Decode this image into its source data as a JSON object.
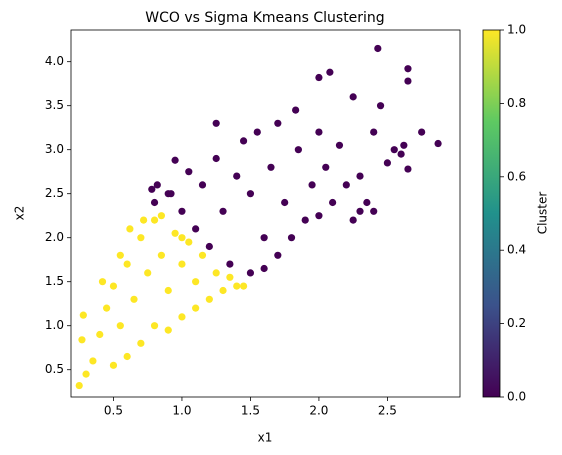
{
  "chart_data": {
    "type": "scatter",
    "title": "WCO vs Sigma Kmeans Clustering",
    "x_label": "x1",
    "y_label": "x2",
    "xlim": [
      0.19,
      3.03
    ],
    "ylim": [
      0.19,
      4.36
    ],
    "xticks": [
      0.5,
      {
        "value": 1,
        "label": "1.0"
      },
      1.5,
      {
        "value": 2,
        "label": "2.0"
      },
      2.5
    ],
    "yticks": [
      0.5,
      {
        "value": 1,
        "label": "1.0"
      },
      1.5,
      {
        "value": 2,
        "label": "2.0"
      },
      2.5,
      {
        "value": 3,
        "label": "3.0"
      },
      3.5,
      {
        "value": 4,
        "label": "4.0"
      }
    ],
    "series": [
      {
        "color": "#fde725",
        "x": [
          0.25,
          0.27,
          0.28,
          0.3,
          0.35,
          0.4,
          0.45,
          0.5,
          0.5,
          0.55,
          0.6,
          0.6,
          0.65,
          0.7,
          0.7,
          0.75,
          0.8,
          0.8,
          0.85,
          0.9,
          0.9,
          0.95,
          1.0,
          1.0,
          1.05,
          1.1,
          1.1,
          1.15,
          1.2,
          1.25,
          1.3,
          1.35,
          1.4,
          1.45,
          0.62,
          0.72,
          0.85,
          0.42,
          0.55,
          1.0
        ],
        "values": [
          0.32,
          0.84,
          1.12,
          0.45,
          0.6,
          0.9,
          1.2,
          0.55,
          1.45,
          1.0,
          1.7,
          0.65,
          1.3,
          2.0,
          0.8,
          1.6,
          2.2,
          1.0,
          1.8,
          0.95,
          1.4,
          2.05,
          1.1,
          1.7,
          1.95,
          1.2,
          1.5,
          1.8,
          1.3,
          1.6,
          1.4,
          1.55,
          1.45,
          1.45,
          2.1,
          2.2,
          2.25,
          1.5,
          1.8,
          2.0
        ]
      },
      {
        "color": "#440154",
        "x": [
          0.8,
          0.82,
          0.9,
          0.95,
          1.0,
          1.05,
          1.1,
          1.15,
          1.2,
          1.25,
          1.3,
          1.35,
          1.4,
          1.45,
          1.5,
          1.5,
          1.55,
          1.6,
          1.65,
          1.7,
          1.7,
          1.75,
          1.8,
          1.85,
          1.9,
          1.95,
          2.0,
          2.0,
          2.05,
          2.1,
          2.15,
          2.2,
          2.25,
          2.3,
          2.35,
          2.4,
          2.0,
          2.08,
          2.25,
          2.43,
          2.65,
          2.65,
          2.75,
          2.87,
          2.62,
          2.6,
          2.55,
          2.65,
          2.5,
          2.45,
          1.83,
          1.25,
          0.92,
          0.78,
          1.6,
          2.4,
          2.3
        ],
        "values": [
          2.4,
          2.6,
          2.5,
          2.88,
          2.3,
          2.75,
          2.1,
          2.6,
          1.9,
          2.9,
          2.3,
          1.7,
          2.7,
          3.1,
          1.6,
          2.5,
          3.2,
          2.0,
          2.8,
          1.8,
          3.3,
          2.4,
          2.0,
          3.0,
          2.2,
          2.6,
          2.25,
          3.2,
          2.8,
          2.4,
          3.05,
          2.6,
          2.2,
          2.7,
          2.4,
          3.2,
          3.82,
          3.88,
          3.6,
          4.15,
          3.92,
          3.78,
          3.2,
          3.07,
          3.05,
          2.95,
          3.0,
          2.78,
          2.85,
          3.5,
          3.45,
          3.3,
          2.5,
          2.55,
          1.65,
          2.3,
          2.3
        ]
      }
    ],
    "colorbar": {
      "label": "Cluster",
      "lim": [
        0,
        1
      ],
      "ticks": [
        {
          "value": 0,
          "label": "0.0"
        },
        0.2,
        0.4,
        0.6,
        0.8,
        {
          "value": 1,
          "label": "1.0"
        }
      ],
      "colors": [
        "#440154",
        "#3b528b",
        "#21918c",
        "#5ec962",
        "#fde725"
      ]
    }
  }
}
